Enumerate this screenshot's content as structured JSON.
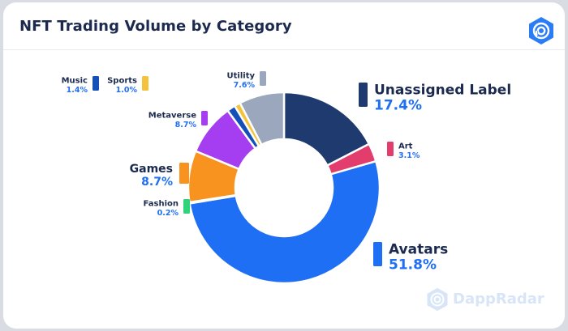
{
  "title": "NFT Trading Volume by Category",
  "brand": {
    "watermark": "DappRadar",
    "logo_icon": "dappradar-logo-icon"
  },
  "chart_data": {
    "type": "pie",
    "donut": true,
    "title": "NFT Trading Volume by Category",
    "unit": "%",
    "slices": [
      {
        "name": "Unassigned Label",
        "value": 17.4,
        "label": "17.4%",
        "color": "#1e3a6e"
      },
      {
        "name": "Art",
        "value": 3.1,
        "label": "3.1%",
        "color": "#e23d6d"
      },
      {
        "name": "Avatars",
        "value": 51.8,
        "label": "51.8%",
        "color": "#1f6ff5"
      },
      {
        "name": "Fashion",
        "value": 0.2,
        "label": "0.2%",
        "color": "#2fd47a"
      },
      {
        "name": "Games",
        "value": 8.7,
        "label": "8.7%",
        "color": "#f7931e"
      },
      {
        "name": "Metaverse",
        "value": 8.7,
        "label": "8.7%",
        "color": "#a53ef0"
      },
      {
        "name": "Music",
        "value": 1.4,
        "label": "1.4%",
        "color": "#1450b8"
      },
      {
        "name": "Sports",
        "value": 1.0,
        "label": "1.0%",
        "color": "#f5c33b"
      },
      {
        "name": "Utility",
        "value": 7.6,
        "label": "7.6%",
        "color": "#9aa7bd"
      }
    ]
  }
}
